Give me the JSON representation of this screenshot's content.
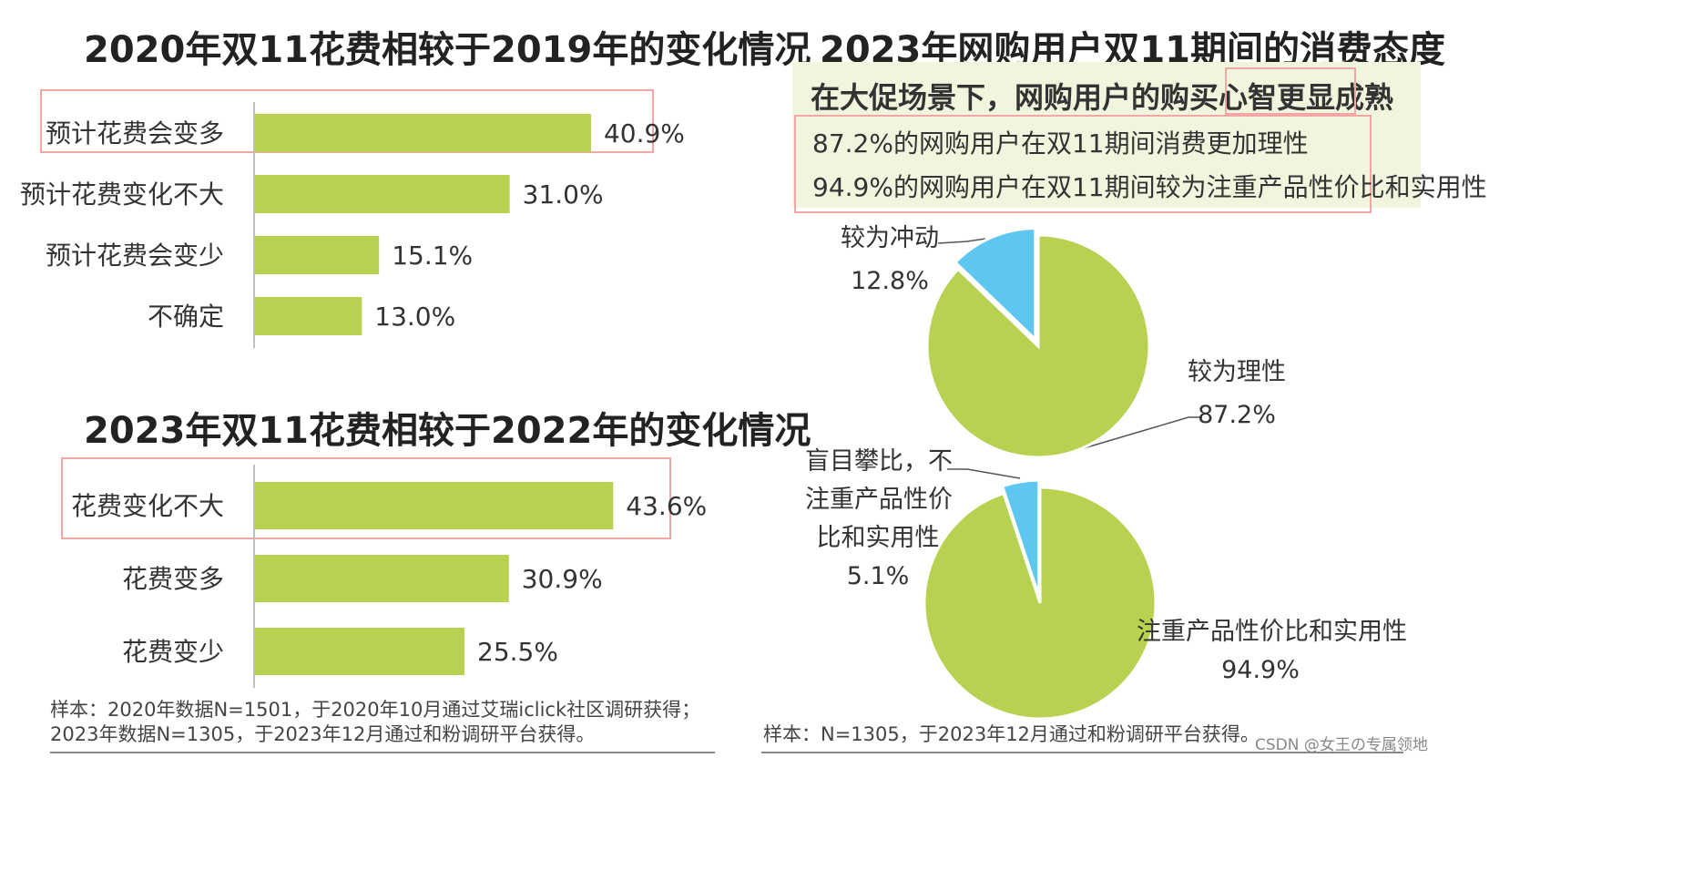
{
  "colors": {
    "bar": "#b8d151",
    "pie_main": "#b8d151",
    "pie_slice": "#5ec7ef",
    "highlight_box": "#f2a6a6",
    "panel_bg": "#f0f5de"
  },
  "left": {
    "chart1_title": "2020年双11花费相较于2019年的变化情况",
    "chart2_title": "2023年双11花费相较于2022年的变化情况",
    "note": "样本：2020年数据N=1501，于2020年10月通过艾瑞iclick社区调研获得；2023年数据N=1305，于2023年12月通过和粉调研平台获得。"
  },
  "right": {
    "title": "2023年网购用户双11期间的消费态度",
    "headline": "在大促场景下，网购用户的购买心智更显成熟",
    "stats": [
      "87.2%的网购用户在双11期间消费更加理性",
      "94.9%的网购用户在双11期间较为注重产品性价比和实用性"
    ],
    "pie1_labels": {
      "slice_name": "较为冲动",
      "slice_value": "12.8%",
      "main_name": "较为理性",
      "main_value": "87.2%"
    },
    "pie2_labels": {
      "slice_name_1": "盲目攀比，不",
      "slice_name_2": "注重产品性价",
      "slice_name_3": "比和实用性",
      "slice_value": "5.1%",
      "main_name": "注重产品性价比和实用性",
      "main_value": "94.9%"
    },
    "note": "样本：N=1305，于2023年12月通过和粉调研平台获得。"
  },
  "watermark": "CSDN @女王の专属领地",
  "chart_data": [
    {
      "type": "bar",
      "orientation": "horizontal",
      "title": "2020年双11花费相较于2019年的变化情况",
      "categories": [
        "预计花费会变多",
        "预计花费变化不大",
        "预计花费会变少",
        "不确定"
      ],
      "values": [
        40.9,
        31.0,
        15.1,
        13.0
      ],
      "labels": [
        "40.9%",
        "31.0%",
        "15.1%",
        "13.0%"
      ],
      "unit": "%",
      "xlim": [
        0,
        48
      ],
      "grid": false,
      "highlighted": "预计花费会变多"
    },
    {
      "type": "bar",
      "orientation": "horizontal",
      "title": "2023年双11花费相较于2022年的变化情况",
      "categories": [
        "花费变化不大",
        "花费变多",
        "花费变少"
      ],
      "values": [
        43.6,
        30.9,
        25.5
      ],
      "labels": [
        "43.6%",
        "30.9%",
        "25.5%"
      ],
      "unit": "%",
      "xlim": [
        0,
        48
      ],
      "grid": false,
      "highlighted": "花费变化不大"
    },
    {
      "type": "pie",
      "categories": [
        "较为冲动",
        "较为理性"
      ],
      "values": [
        12.8,
        87.2
      ]
    },
    {
      "type": "pie",
      "categories": [
        "盲目攀比，不注重产品性价比和实用性",
        "注重产品性价比和实用性"
      ],
      "values": [
        5.1,
        94.9
      ]
    }
  ]
}
